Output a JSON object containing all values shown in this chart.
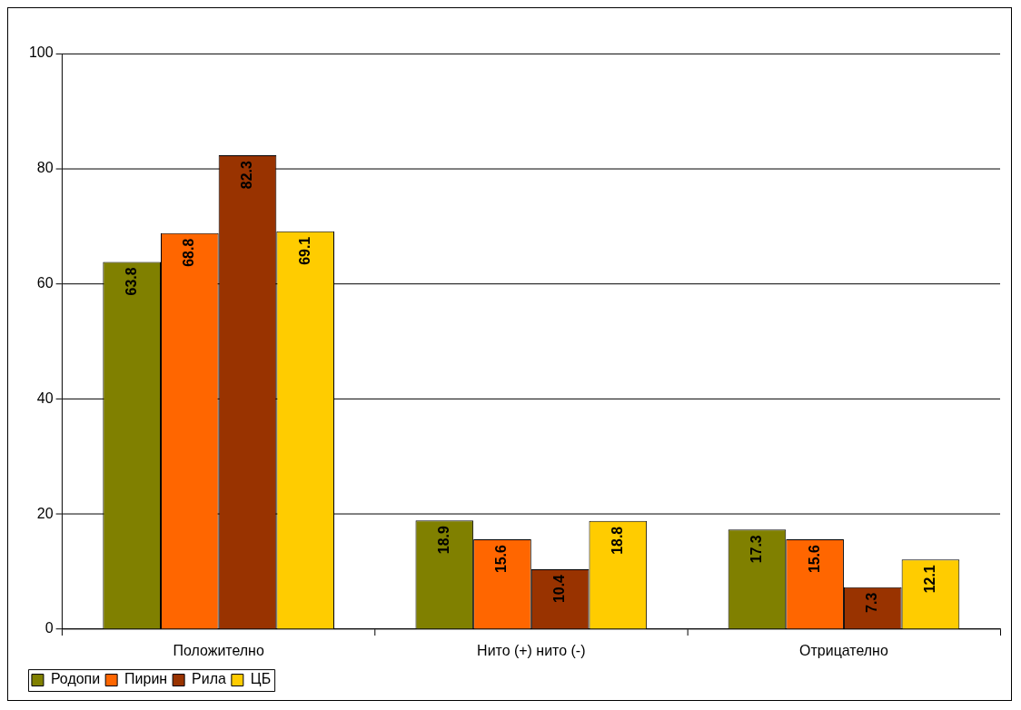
{
  "chart_data": {
    "type": "bar",
    "categories": [
      "Положително",
      "Нито (+) нито (-)",
      "Отрицателно"
    ],
    "series": [
      {
        "name": "Родопи",
        "color": "#808000",
        "values": [
          63.8,
          18.9,
          17.3
        ]
      },
      {
        "name": "Пирин",
        "color": "#ff6600",
        "values": [
          68.8,
          15.6,
          15.6
        ]
      },
      {
        "name": "Рила",
        "color": "#993300",
        "values": [
          82.3,
          10.4,
          7.3
        ]
      },
      {
        "name": "ЦБ",
        "color": "#ffcc00",
        "values": [
          69.1,
          18.8,
          12.1
        ]
      }
    ],
    "ylim": [
      0,
      100
    ],
    "yticks": [
      0,
      20,
      40,
      60,
      80,
      100
    ],
    "grid": "y",
    "legend": "bottom left",
    "data_labels": true
  }
}
